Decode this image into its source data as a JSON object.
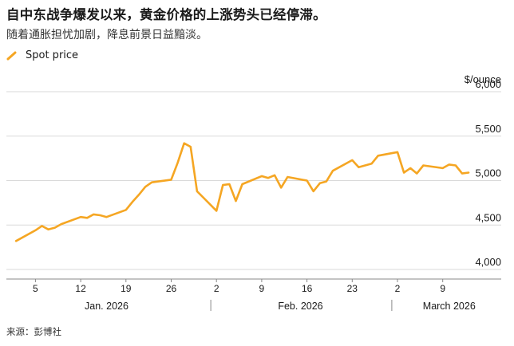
{
  "title": "自中东战争爆发以来，黄金价格的上涨势头已经停滞。",
  "subtitle": "随着通胀担忧加剧，降息前景日益黯淡。",
  "source": "来源：彭博社",
  "colors": {
    "series": "#f5a623",
    "grid": "#d9d9d9",
    "axis": "#888888",
    "text": "#1a1a1a"
  },
  "chart_data": {
    "type": "line",
    "title": "自中东战争爆发以来，黄金价格的上涨势头已经停滞。",
    "subtitle": "随着通胀担忧加剧，降息前景日益黯淡。",
    "y_unit_label": "$/ounce",
    "ylim": [
      4000,
      6000
    ],
    "y_ticks": [
      4000,
      4500,
      5000,
      5500,
      6000
    ],
    "y_tick_labels": [
      "4,000",
      "4,500",
      "5,000",
      "5,500",
      "6,000"
    ],
    "grid": true,
    "legend_position": "top-left",
    "x_range": [
      "2026-01-01",
      "2026-03-14"
    ],
    "x_ticks": [
      {
        "date": "2026-01-05",
        "label": "5"
      },
      {
        "date": "2026-01-12",
        "label": "12"
      },
      {
        "date": "2026-01-19",
        "label": "19"
      },
      {
        "date": "2026-01-26",
        "label": "26"
      },
      {
        "date": "2026-02-02",
        "label": "2"
      },
      {
        "date": "2026-02-09",
        "label": "9"
      },
      {
        "date": "2026-02-16",
        "label": "16"
      },
      {
        "date": "2026-02-23",
        "label": "23"
      },
      {
        "date": "2026-03-02",
        "label": "2"
      },
      {
        "date": "2026-03-09",
        "label": "9"
      }
    ],
    "month_labels": [
      {
        "label": "Jan. 2026",
        "date": "2026-01-16"
      },
      {
        "label": "Feb. 2026",
        "date": "2026-02-15"
      },
      {
        "label": "March 2026",
        "date": "2026-03-10"
      }
    ],
    "month_separators": [
      "2026-02-01",
      "2026-03-01"
    ],
    "series": [
      {
        "name": "Spot price",
        "points": [
          [
            "2026-01-02",
            4320
          ],
          [
            "2026-01-05",
            4440
          ],
          [
            "2026-01-06",
            4490
          ],
          [
            "2026-01-07",
            4450
          ],
          [
            "2026-01-08",
            4470
          ],
          [
            "2026-01-09",
            4510
          ],
          [
            "2026-01-12",
            4590
          ],
          [
            "2026-01-13",
            4580
          ],
          [
            "2026-01-14",
            4620
          ],
          [
            "2026-01-15",
            4610
          ],
          [
            "2026-01-16",
            4590
          ],
          [
            "2026-01-19",
            4670
          ],
          [
            "2026-01-20",
            4760
          ],
          [
            "2026-01-21",
            4840
          ],
          [
            "2026-01-22",
            4930
          ],
          [
            "2026-01-23",
            4980
          ],
          [
            "2026-01-26",
            5010
          ],
          [
            "2026-01-27",
            5200
          ],
          [
            "2026-01-28",
            5420
          ],
          [
            "2026-01-29",
            5380
          ],
          [
            "2026-01-30",
            4880
          ],
          [
            "2026-02-02",
            4660
          ],
          [
            "2026-02-03",
            4950
          ],
          [
            "2026-02-04",
            4960
          ],
          [
            "2026-02-05",
            4770
          ],
          [
            "2026-02-06",
            4960
          ],
          [
            "2026-02-09",
            5050
          ],
          [
            "2026-02-10",
            5030
          ],
          [
            "2026-02-11",
            5060
          ],
          [
            "2026-02-12",
            4920
          ],
          [
            "2026-02-13",
            5040
          ],
          [
            "2026-02-16",
            5000
          ],
          [
            "2026-02-17",
            4880
          ],
          [
            "2026-02-18",
            4970
          ],
          [
            "2026-02-19",
            4990
          ],
          [
            "2026-02-20",
            5110
          ],
          [
            "2026-02-23",
            5230
          ],
          [
            "2026-02-24",
            5150
          ],
          [
            "2026-02-25",
            5170
          ],
          [
            "2026-02-26",
            5190
          ],
          [
            "2026-02-27",
            5280
          ],
          [
            "2026-03-02",
            5320
          ],
          [
            "2026-03-03",
            5090
          ],
          [
            "2026-03-04",
            5140
          ],
          [
            "2026-03-05",
            5080
          ],
          [
            "2026-03-06",
            5170
          ],
          [
            "2026-03-09",
            5140
          ],
          [
            "2026-03-10",
            5180
          ],
          [
            "2026-03-11",
            5170
          ],
          [
            "2026-03-12",
            5080
          ],
          [
            "2026-03-13",
            5090
          ]
        ]
      }
    ]
  }
}
